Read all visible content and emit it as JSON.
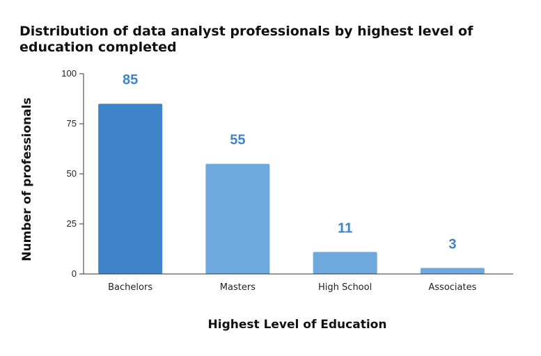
{
  "chart_data": {
    "type": "bar",
    "title": "Distribution of data analyst professionals by highest level of education completed",
    "xlabel": "Highest Level of Education",
    "ylabel": "Number of professionals",
    "categories": [
      "Bachelors",
      "Masters",
      "High School",
      "Associates"
    ],
    "values": [
      85,
      55,
      11,
      3
    ],
    "ylim": [
      0,
      100
    ],
    "yticks": [
      0,
      25,
      50,
      75,
      100
    ],
    "grid": false,
    "colors": {
      "highlight": "#3F84C8",
      "bar": "#6FA8DC",
      "data_label": "#3F84C8",
      "axis": "#333333"
    }
  }
}
